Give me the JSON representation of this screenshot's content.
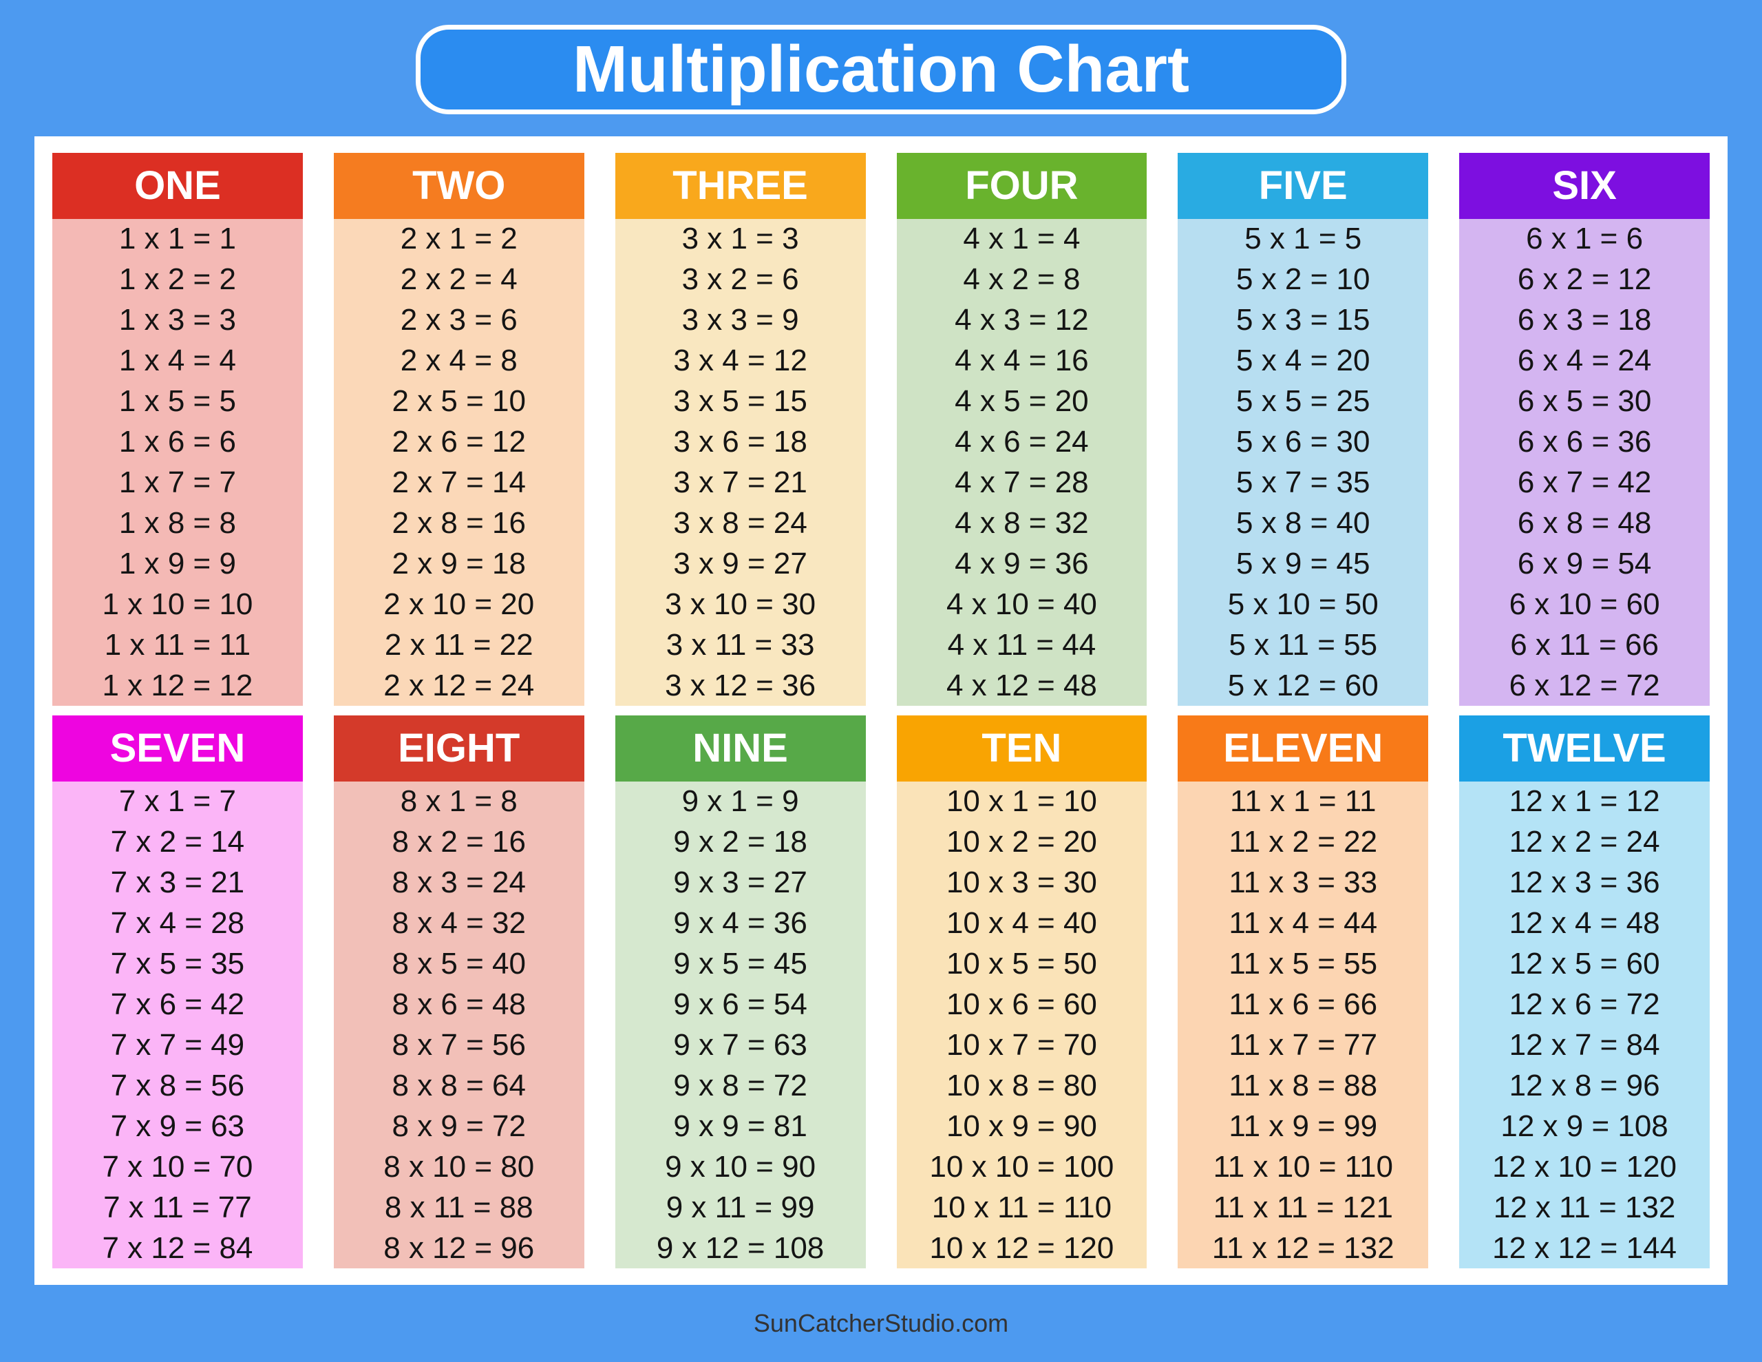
{
  "title": "Multiplication Chart",
  "footer": "SunCatcherStudio.com",
  "colors": {
    "background": "#4d9af0",
    "title_box": "#2b8cf0",
    "title_text": "#ffffff",
    "panel": "#ffffff",
    "fact_text": "#141414",
    "footer_text": "#333333"
  },
  "tables": [
    {
      "name": "ONE",
      "header_color": "#dc2f23",
      "body_color": "#f4b9b5",
      "facts": [
        "1 x 1 = 1",
        "1 x 2 = 2",
        "1 x 3 = 3",
        "1 x 4 = 4",
        "1 x 5 = 5",
        "1 x 6 = 6",
        "1 x 7 = 7",
        "1 x 8 = 8",
        "1 x 9 = 9",
        "1 x 10 = 10",
        "1 x 11 = 11",
        "1 x 12 = 12"
      ]
    },
    {
      "name": "TWO",
      "header_color": "#f57c20",
      "body_color": "#fbd8b8",
      "facts": [
        "2 x 1 = 2",
        "2 x 2 = 4",
        "2 x 3 = 6",
        "2 x 4 = 8",
        "2 x 5 = 10",
        "2 x 6 = 12",
        "2 x 7 = 14",
        "2 x 8 = 16",
        "2 x 9 = 18",
        "2 x 10 = 20",
        "2 x 11 = 22",
        "2 x 12 = 24"
      ]
    },
    {
      "name": "THREE",
      "header_color": "#f9a81c",
      "body_color": "#f9e7c0",
      "facts": [
        "3 x 1 = 3",
        "3 x 2 = 6",
        "3 x 3 = 9",
        "3 x 4 = 12",
        "3 x 5 = 15",
        "3 x 6 = 18",
        "3 x 7 = 21",
        "3 x 8 = 24",
        "3 x 9 = 27",
        "3 x 10 = 30",
        "3 x 11 = 33",
        "3 x 12 = 36"
      ]
    },
    {
      "name": "FOUR",
      "header_color": "#69b32d",
      "body_color": "#cfe3c5",
      "facts": [
        "4 x 1 = 4",
        "4 x 2 = 8",
        "4 x 3 = 12",
        "4 x 4 = 16",
        "4 x 5 = 20",
        "4 x 6 = 24",
        "4 x 7 = 28",
        "4 x 8 = 32",
        "4 x 9 = 36",
        "4 x 10 = 40",
        "4 x 11 = 44",
        "4 x 12 = 48"
      ]
    },
    {
      "name": "FIVE",
      "header_color": "#29abe2",
      "body_color": "#b7def1",
      "facts": [
        "5 x 1 = 5",
        "5 x 2 = 10",
        "5 x 3 = 15",
        "5 x 4 = 20",
        "5 x 5 = 25",
        "5 x 6 = 30",
        "5 x 7 = 35",
        "5 x 8 = 40",
        "5 x 9 = 45",
        "5 x 10 = 50",
        "5 x 11 = 55",
        "5 x 12 = 60"
      ]
    },
    {
      "name": "SIX",
      "header_color": "#7d0fe0",
      "body_color": "#d4b5f1",
      "facts": [
        "6 x 1 = 6",
        "6 x 2 = 12",
        "6 x 3 = 18",
        "6 x 4 = 24",
        "6 x 5 = 30",
        "6 x 6 = 36",
        "6 x 7 = 42",
        "6 x 8 = 48",
        "6 x 9 = 54",
        "6 x 10 = 60",
        "6 x 11 = 66",
        "6 x 12 = 72"
      ]
    },
    {
      "name": "SEVEN",
      "header_color": "#ee05e0",
      "body_color": "#fbb5f7",
      "facts": [
        "7 x 1 = 7",
        "7 x 2 = 14",
        "7 x 3 = 21",
        "7 x 4 = 28",
        "7 x 5 = 35",
        "7 x 6 = 42",
        "7 x 7 = 49",
        "7 x 8 = 56",
        "7 x 9 = 63",
        "7 x 10 = 70",
        "7 x 11 = 77",
        "7 x 12 = 84"
      ]
    },
    {
      "name": "EIGHT",
      "header_color": "#d43a2a",
      "body_color": "#f2c0b8",
      "facts": [
        "8 x 1 = 8",
        "8 x 2 = 16",
        "8 x 3 = 24",
        "8 x 4 = 32",
        "8 x 5 = 40",
        "8 x 6 = 48",
        "8 x 7 = 56",
        "8 x 8 = 64",
        "8 x 9 = 72",
        "8 x 10 = 80",
        "8 x 11 = 88",
        "8 x 12 = 96"
      ]
    },
    {
      "name": "NINE",
      "header_color": "#57a948",
      "body_color": "#d6e8cf",
      "facts": [
        "9 x 1 = 9",
        "9 x 2 = 18",
        "9 x 3 = 27",
        "9 x 4 = 36",
        "9 x 5 = 45",
        "9 x 6 = 54",
        "9 x 7 = 63",
        "9 x 8 = 72",
        "9 x 9 = 81",
        "9 x 10 = 90",
        "9 x 11 = 99",
        "9 x 12 = 108"
      ]
    },
    {
      "name": "TEN",
      "header_color": "#f9a402",
      "body_color": "#fae3b8",
      "facts": [
        "10 x 1 = 10",
        "10 x 2 = 20",
        "10 x 3 = 30",
        "10 x 4 = 40",
        "10 x 5 = 50",
        "10 x 6 = 60",
        "10 x 7 = 70",
        "10 x 8 = 80",
        "10 x 9 = 90",
        "10 x 10 = 100",
        "10 x 11 = 110",
        "10 x 12 = 120"
      ]
    },
    {
      "name": "ELEVEN",
      "header_color": "#f87a18",
      "body_color": "#fcd5b2",
      "facts": [
        "11 x 1 = 11",
        "11 x 2 = 22",
        "11 x 3 = 33",
        "11 x 4 = 44",
        "11 x 5 = 55",
        "11 x 6 = 66",
        "11 x 7 = 77",
        "11 x 8 = 88",
        "11 x 9 = 99",
        "11 x 10 = 110",
        "11 x 11 = 121",
        "11 x 12 = 132"
      ]
    },
    {
      "name": "TWELVE",
      "header_color": "#1ba0e4",
      "body_color": "#b4e3f6",
      "facts": [
        "12 x 1 = 12",
        "12 x 2 = 24",
        "12 x 3 = 36",
        "12 x 4 = 48",
        "12 x 5 = 60",
        "12 x 6 = 72",
        "12 x 7 = 84",
        "12 x 8 = 96",
        "12 x 9 = 108",
        "12 x 10 = 120",
        "12 x 11 = 132",
        "12 x 12 = 144"
      ]
    }
  ]
}
